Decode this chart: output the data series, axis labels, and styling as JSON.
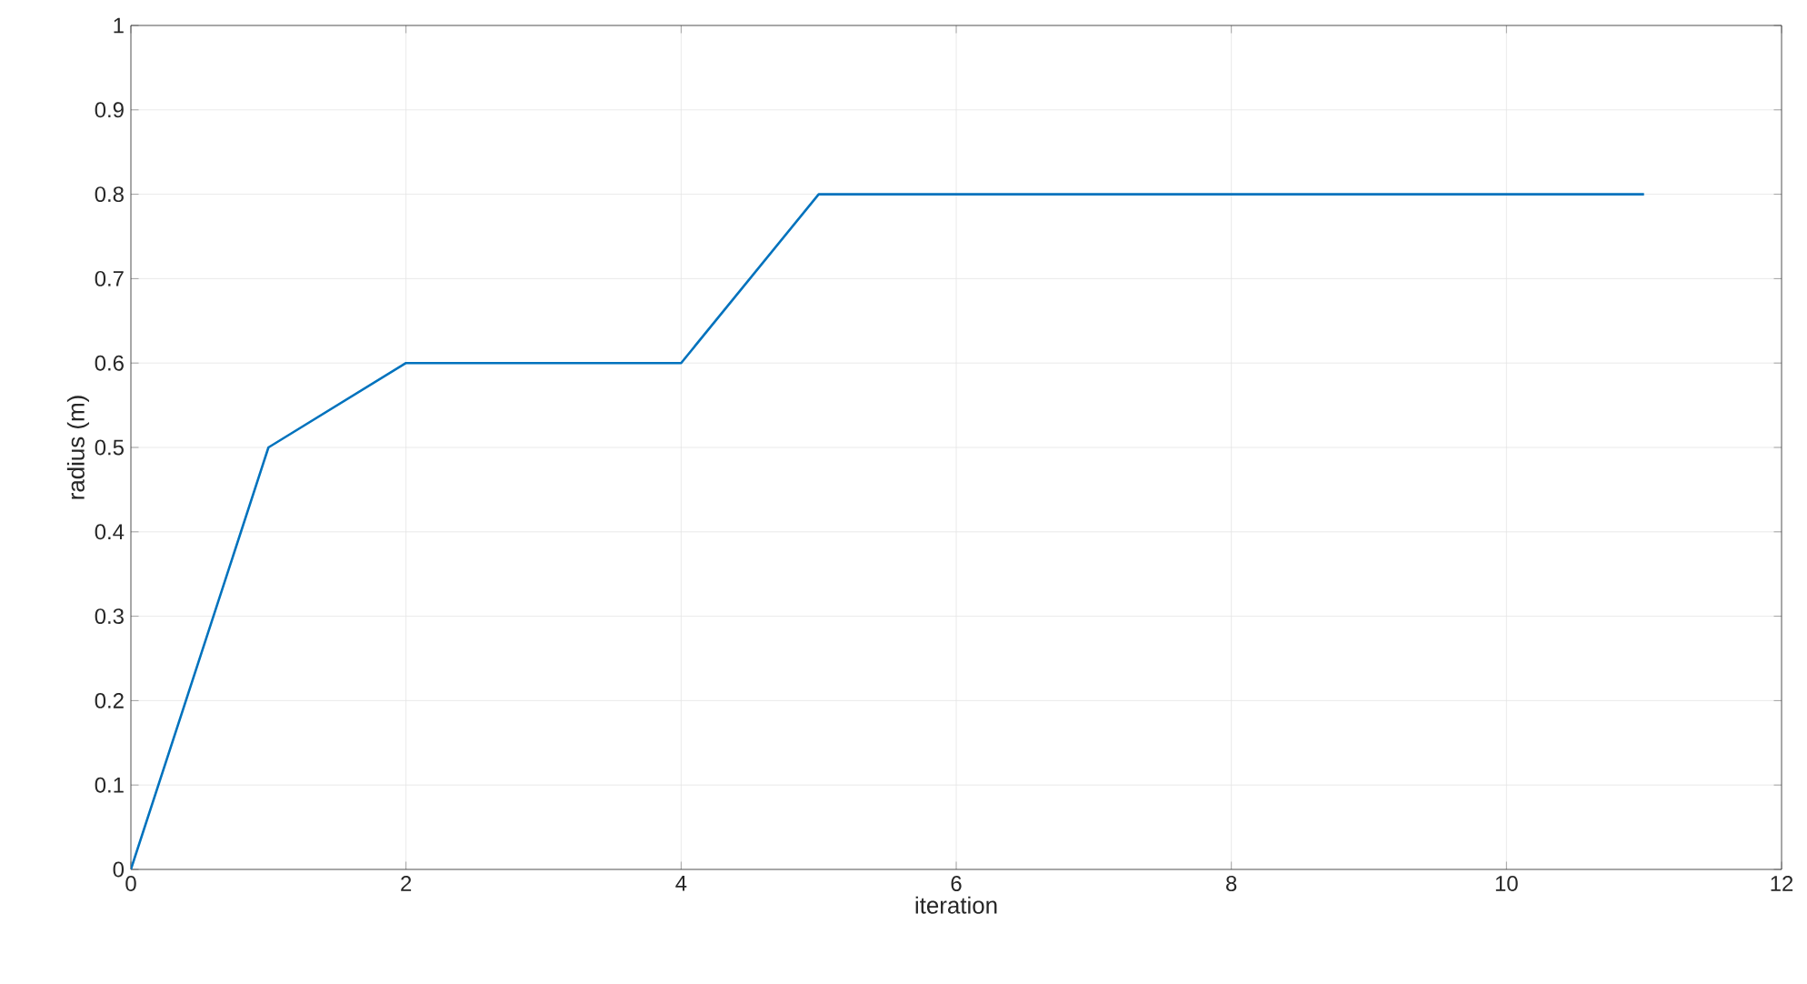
{
  "chart_data": {
    "type": "line",
    "xlabel": "iteration",
    "ylabel": "radius (m)",
    "x": [
      0,
      1,
      2,
      3,
      4,
      5,
      6,
      7,
      8,
      9,
      10,
      11
    ],
    "series": [
      {
        "color": "#0072bd",
        "values": [
          0,
          0.5,
          0.6,
          0.6,
          0.6,
          0.8,
          0.8,
          0.8,
          0.8,
          0.8,
          0.8,
          0.8
        ]
      }
    ],
    "xlim": [
      0,
      12
    ],
    "xticks": [
      0,
      2,
      4,
      6,
      8,
      10,
      12
    ],
    "ylim": [
      0,
      1
    ],
    "yticks": [
      0,
      0.1,
      0.2,
      0.3,
      0.4,
      0.5,
      0.6,
      0.7,
      0.8,
      0.9,
      1
    ],
    "grid": true,
    "line_style": "solid",
    "marker": "none"
  }
}
